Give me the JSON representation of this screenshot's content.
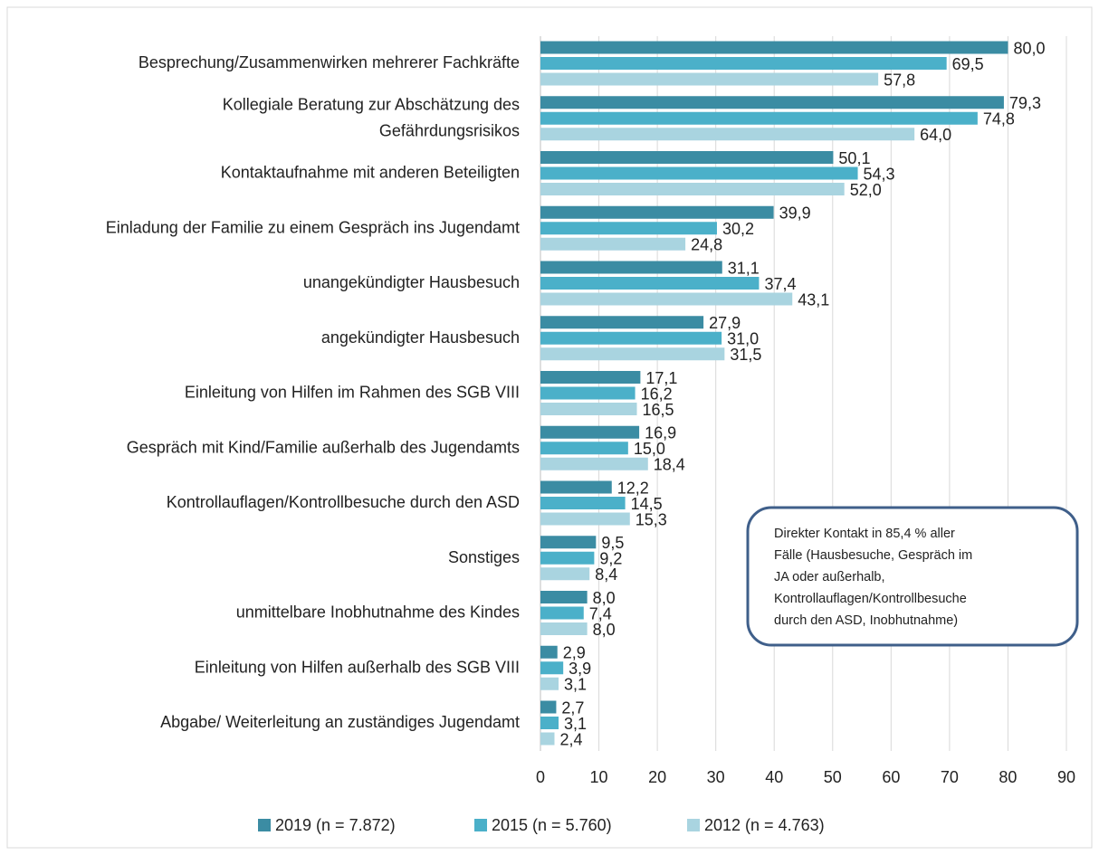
{
  "chart_data": {
    "type": "bar",
    "orientation": "horizontal",
    "categories": [
      "Besprechung/Zusammenwirken mehrerer Fachkräfte",
      "Kollegiale Beratung zur Abschätzung des\nGefährdungsrisikos",
      "Kontaktaufnahme mit anderen Beteiligten",
      "Einladung der Familie zu einem Gespräch ins Jugendamt",
      "unangekündigter Hausbesuch",
      "angekündigter Hausbesuch",
      "Einleitung von Hilfen im Rahmen des SGB VIII",
      "Gespräch mit Kind/Familie außerhalb des Jugendamts",
      "Kontrollauflagen/Kontrollbesuche durch den ASD",
      "Sonstiges",
      "unmittelbare Inobhutnahme des Kindes",
      "Einleitung von Hilfen außerhalb des SGB VIII",
      "Abgabe/ Weiterleitung an zuständiges Jugendamt"
    ],
    "series": [
      {
        "name": "2019 (n = 7.872)",
        "color": "#3b8ca3",
        "values": [
          80.0,
          79.3,
          50.1,
          39.9,
          31.1,
          27.9,
          17.1,
          16.9,
          12.2,
          9.5,
          8.0,
          2.9,
          2.7
        ],
        "value_labels": [
          "80,0",
          "79,3",
          "50,1",
          "39,9",
          "31,1",
          "27,9",
          "17,1",
          "16,9",
          "12,2",
          "9,5",
          "8,0",
          "2,9",
          "2,7"
        ]
      },
      {
        "name": "2015 (n = 5.760)",
        "color": "#4bb0c9",
        "values": [
          69.5,
          74.8,
          54.3,
          30.2,
          37.4,
          31.0,
          16.2,
          15.0,
          14.5,
          9.2,
          7.4,
          3.9,
          3.1
        ],
        "value_labels": [
          "69,5",
          "74,8",
          "54,3",
          "30,2",
          "37,4",
          "31,0",
          "16,2",
          "15,0",
          "14,5",
          "9,2",
          "7,4",
          "3,9",
          "3,1"
        ]
      },
      {
        "name": "2012 (n = 4.763)",
        "color": "#a9d4e0",
        "values": [
          57.8,
          64.0,
          52.0,
          24.8,
          43.1,
          31.5,
          16.5,
          18.4,
          15.3,
          8.4,
          8.0,
          3.1,
          2.4
        ],
        "value_labels": [
          "57,8",
          "64,0",
          "52,0",
          "24,8",
          "43,1",
          "31,5",
          "16,5",
          "18,4",
          "15,3",
          "8,4",
          "8,0",
          "3,1",
          "2,4"
        ]
      }
    ],
    "xlim": [
      0,
      90
    ],
    "xticks": [
      0,
      10,
      20,
      30,
      40,
      50,
      60,
      70,
      80,
      90
    ],
    "grid": true,
    "legend": "bottom",
    "annotation": [
      "Direkter Kontakt in 85,4 % aller",
      "Fälle (Hausbesuche, Gespräch im",
      "JA oder außerhalb,",
      "Kontrollauflagen/Kontrollbesuche",
      "durch den ASD, Inobhutnahme)"
    ]
  }
}
